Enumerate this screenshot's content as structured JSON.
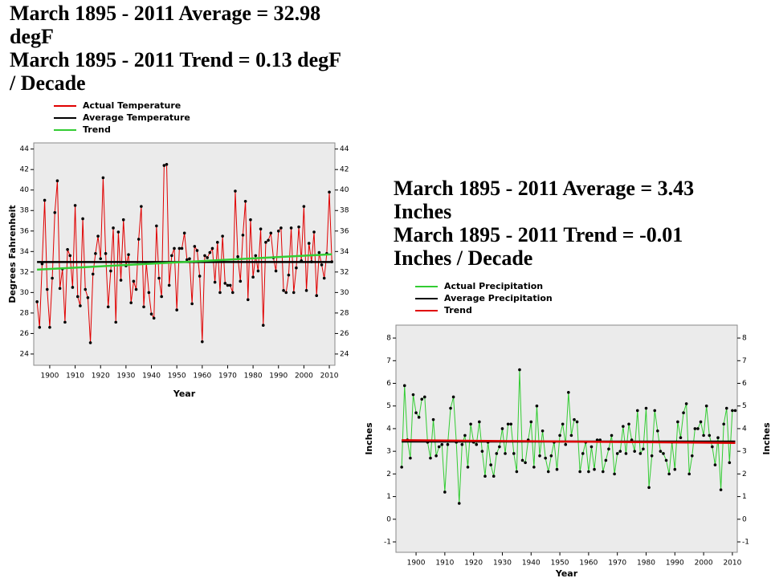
{
  "chart_data": [
    {
      "type": "line",
      "title_lines": [
        "March 1895 - 2011 Average = 32.98",
        "degF",
        "March 1895 - 2011 Trend = 0.13 degF",
        "/ Decade"
      ],
      "xlabel": "Year",
      "ylabel": "Degrees Fahrenheit",
      "xlim": [
        1893.7,
        2012.2
      ],
      "xticks": [
        1900,
        1910,
        1920,
        1930,
        1940,
        1950,
        1960,
        1970,
        1980,
        1990,
        2000,
        2010
      ],
      "ylim": [
        22.9,
        44.6
      ],
      "yticks": [
        24,
        26,
        28,
        30,
        32,
        34,
        36,
        38,
        40,
        42,
        44
      ],
      "mirror_y": true,
      "legend": "top",
      "x": [
        1895,
        1896,
        1897,
        1898,
        1899,
        1900,
        1901,
        1902,
        1903,
        1904,
        1905,
        1906,
        1907,
        1908,
        1909,
        1910,
        1911,
        1912,
        1913,
        1914,
        1915,
        1916,
        1917,
        1918,
        1919,
        1920,
        1921,
        1922,
        1923,
        1924,
        1925,
        1926,
        1927,
        1928,
        1929,
        1930,
        1931,
        1932,
        1933,
        1934,
        1935,
        1936,
        1937,
        1938,
        1939,
        1940,
        1941,
        1942,
        1943,
        1944,
        1945,
        1946,
        1947,
        1948,
        1949,
        1950,
        1951,
        1952,
        1953,
        1954,
        1955,
        1956,
        1957,
        1958,
        1959,
        1960,
        1961,
        1962,
        1963,
        1964,
        1965,
        1966,
        1967,
        1968,
        1969,
        1970,
        1971,
        1972,
        1973,
        1974,
        1975,
        1976,
        1977,
        1978,
        1979,
        1980,
        1981,
        1982,
        1983,
        1984,
        1985,
        1986,
        1987,
        1988,
        1989,
        1990,
        1991,
        1992,
        1993,
        1994,
        1995,
        1996,
        1997,
        1998,
        1999,
        2000,
        2001,
        2002,
        2003,
        2004,
        2005,
        2006,
        2007,
        2008,
        2009,
        2010,
        2011
      ],
      "series": [
        {
          "name": "Actual Temperature",
          "color": "#e00000",
          "markers": true,
          "values": [
            29.1,
            26.6,
            32.8,
            39.0,
            30.3,
            26.6,
            31.4,
            37.8,
            40.9,
            30.4,
            32.3,
            27.1,
            34.2,
            33.6,
            30.5,
            38.5,
            29.6,
            28.7,
            37.2,
            30.3,
            29.5,
            25.1,
            31.8,
            33.8,
            35.5,
            33.3,
            41.2,
            33.8,
            28.6,
            32.1,
            36.3,
            27.1,
            35.9,
            31.2,
            37.1,
            32.6,
            33.7,
            29.0,
            31.1,
            30.3,
            35.2,
            38.4,
            28.6,
            32.9,
            30.0,
            27.9,
            27.5,
            36.5,
            31.4,
            29.6,
            42.4,
            42.5,
            30.7,
            33.6,
            34.3,
            28.3,
            34.3,
            34.3,
            35.8,
            33.2,
            33.3,
            28.9,
            34.5,
            34.1,
            31.6,
            25.2,
            33.6,
            33.4,
            33.9,
            34.3,
            31.0,
            34.9,
            30.0,
            35.5,
            30.9,
            30.7,
            30.7,
            30.0,
            39.9,
            33.5,
            31.1,
            35.6,
            38.9,
            29.3,
            37.1,
            31.5,
            33.6,
            32.1,
            36.2,
            26.8,
            34.9,
            35.1,
            35.8,
            33.4,
            32.1,
            36.0,
            36.3,
            30.2,
            30.0,
            31.7,
            36.3,
            30.0,
            32.4,
            36.4,
            33.1,
            38.4,
            30.2,
            34.8,
            33.0,
            35.9,
            29.7,
            33.9,
            32.7,
            31.4,
            33.8,
            39.8,
            33.0
          ]
        },
        {
          "name": "Average Temperature",
          "color": "#000000",
          "x": [
            1895,
            2011
          ],
          "values": [
            32.98,
            32.98
          ]
        },
        {
          "name": "Trend",
          "color": "#33cc33",
          "x": [
            1895,
            2011
          ],
          "values": [
            32.23,
            33.73
          ]
        }
      ]
    },
    {
      "type": "line",
      "title_lines": [
        "March 1895 - 2011 Average = 3.43",
        "Inches",
        "March 1895 - 2011 Trend = -0.01",
        "Inches / Decade"
      ],
      "xlabel": "Year",
      "ylabel": "Inches",
      "ylabel_right": "Inches",
      "xlim": [
        1893.0,
        2011.7
      ],
      "xticks": [
        1900,
        1910,
        1920,
        1930,
        1940,
        1950,
        1960,
        1970,
        1980,
        1990,
        2000,
        2010
      ],
      "ylim": [
        -1.46,
        8.57
      ],
      "yticks": [
        -1,
        0,
        1,
        2,
        3,
        4,
        5,
        6,
        7,
        8
      ],
      "mirror_y": true,
      "legend": "top",
      "x": [
        1895,
        1896,
        1897,
        1898,
        1899,
        1900,
        1901,
        1902,
        1903,
        1904,
        1905,
        1906,
        1907,
        1908,
        1909,
        1910,
        1911,
        1912,
        1913,
        1914,
        1915,
        1916,
        1917,
        1918,
        1919,
        1920,
        1921,
        1922,
        1923,
        1924,
        1925,
        1926,
        1927,
        1928,
        1929,
        1930,
        1931,
        1932,
        1933,
        1934,
        1935,
        1936,
        1937,
        1938,
        1939,
        1940,
        1941,
        1942,
        1943,
        1944,
        1945,
        1946,
        1947,
        1948,
        1949,
        1950,
        1951,
        1952,
        1953,
        1954,
        1955,
        1956,
        1957,
        1958,
        1959,
        1960,
        1961,
        1962,
        1963,
        1964,
        1965,
        1966,
        1967,
        1968,
        1969,
        1970,
        1971,
        1972,
        1973,
        1974,
        1975,
        1976,
        1977,
        1978,
        1979,
        1980,
        1981,
        1982,
        1983,
        1984,
        1985,
        1986,
        1987,
        1988,
        1989,
        1990,
        1991,
        1992,
        1993,
        1994,
        1995,
        1996,
        1997,
        1998,
        1999,
        2000,
        2001,
        2002,
        2003,
        2004,
        2005,
        2006,
        2007,
        2008,
        2009,
        2010,
        2011
      ],
      "series": [
        {
          "name": "Actual Precipitation",
          "color": "#33cc33",
          "markers": true,
          "values": [
            2.3,
            5.9,
            3.5,
            2.7,
            5.5,
            4.7,
            4.5,
            5.3,
            5.4,
            3.4,
            2.7,
            4.4,
            2.8,
            3.2,
            3.3,
            1.2,
            3.3,
            4.9,
            5.4,
            3.4,
            0.7,
            3.3,
            3.7,
            2.3,
            4.2,
            3.4,
            3.3,
            4.3,
            3.0,
            1.9,
            3.4,
            2.4,
            1.9,
            2.9,
            3.2,
            4.0,
            2.9,
            4.2,
            4.2,
            2.9,
            2.1,
            6.6,
            2.6,
            2.5,
            3.5,
            4.3,
            2.3,
            5.0,
            2.8,
            3.9,
            2.7,
            2.1,
            2.8,
            3.4,
            2.2,
            3.7,
            4.2,
            3.3,
            5.6,
            3.7,
            4.4,
            4.3,
            2.1,
            2.9,
            3.4,
            2.1,
            3.2,
            2.2,
            3.5,
            3.5,
            2.1,
            2.6,
            3.1,
            3.7,
            2.0,
            2.9,
            3.0,
            4.1,
            2.9,
            4.2,
            3.5,
            3.0,
            4.8,
            2.9,
            3.1,
            4.9,
            1.4,
            2.8,
            4.8,
            3.9,
            3.0,
            2.9,
            2.6,
            2.0,
            3.4,
            2.2,
            4.3,
            3.6,
            4.7,
            5.1,
            2.0,
            2.8,
            4.0,
            4.0,
            4.3,
            3.7,
            5.0,
            3.7,
            3.2,
            2.4,
            3.6,
            1.3,
            4.2,
            4.9,
            2.5,
            4.8,
            4.8
          ]
        },
        {
          "name": "Average Precipitation",
          "color": "#000000",
          "x": [
            1895,
            2011
          ],
          "values": [
            3.43,
            3.43
          ]
        },
        {
          "name": "Trend",
          "color": "#e00000",
          "x": [
            1895,
            2011
          ],
          "values": [
            3.49,
            3.37
          ]
        }
      ]
    }
  ]
}
